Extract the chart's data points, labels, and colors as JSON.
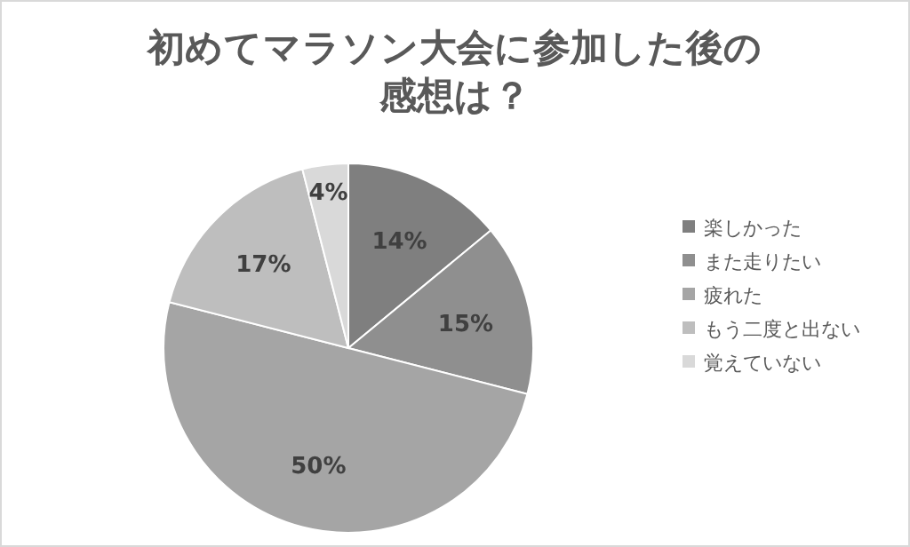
{
  "chart_data": {
    "type": "pie",
    "title": "初めてマラソン大会に参加した後の感想は？",
    "categories": [
      "楽しかった",
      "また走りたい",
      "疲れた",
      "もう二度と出ない",
      "覚えていない"
    ],
    "values": [
      14,
      15,
      50,
      17,
      4
    ],
    "value_labels": [
      "14%",
      "15%",
      "50%",
      "17%",
      "4%"
    ],
    "colors": [
      "#7f7f7f",
      "#8f8f8f",
      "#a5a5a5",
      "#bebebe",
      "#d9d9d9"
    ],
    "legend": "right"
  }
}
